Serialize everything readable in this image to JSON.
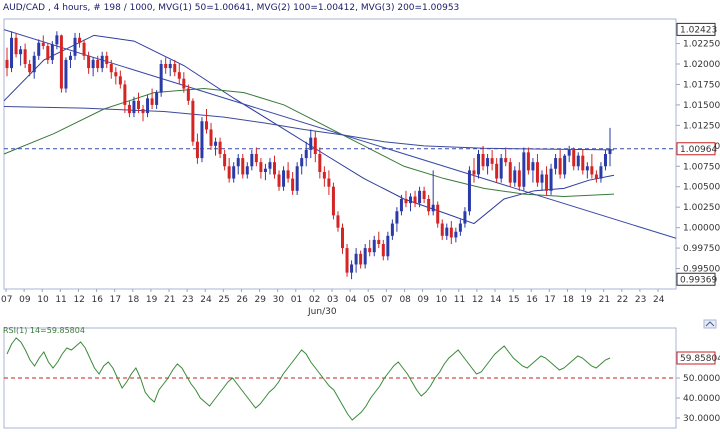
{
  "header": {
    "title": "AUD/CAD , 4 hours, # 198 / 1000, MVG(1) 50=1.00641, MVG(2) 100=1.00412, MVG(3) 200=1.00953"
  },
  "rsi_header": {
    "title": "RSI(1) 14=59.85804"
  },
  "colors": {
    "background": "#ffffff",
    "panel_frame": "#aab6d4",
    "candle_up": "#2a3aa8",
    "candle_down": "#d42424",
    "mvg50": "#2c3a9e",
    "mvg100": "#3a7a3a",
    "mvg200": "#3a4a9e",
    "trendline": "#3a4aa8",
    "dashed_level": "#3a4aa8",
    "rsi_line": "#3a8a3a",
    "rsi_level": "#c82020"
  },
  "chart_data": [
    {
      "type": "candlestick",
      "panel": "price",
      "x_ticks": [
        "07",
        "09",
        "10",
        "11",
        "12",
        "16",
        "17",
        "18",
        "19",
        "21",
        "23",
        "24",
        "25",
        "26",
        "29",
        "30",
        "01",
        "02",
        "03",
        "04",
        "05",
        "07",
        "08",
        "09",
        "10",
        "11",
        "12",
        "14",
        "15",
        "16",
        "17",
        "18",
        "19",
        "21",
        "22",
        "23",
        "24"
      ],
      "x_sublabel": "Jun/30",
      "y_ticks": [
        "1.02250",
        "1.02000",
        "1.01750",
        "1.01500",
        "1.01250",
        "1.01000",
        "1.00750",
        "1.00500",
        "1.00250",
        "1.00000",
        "0.99750",
        "0.99500"
      ],
      "y_range": [
        0.9925,
        1.0255
      ],
      "price_labels": {
        "high": {
          "text": "1.02423",
          "value": 1.02423
        },
        "current": {
          "text": "1.00964",
          "value": 1.00964
        },
        "low": {
          "text": "0.99369",
          "value": 0.99369
        }
      },
      "dashed_level": 1.00964,
      "trendline": {
        "from": [
          0,
          1.0242
        ],
        "to": [
          720,
          0.9987
        ]
      },
      "series": [
        {
          "name": "MVG(1) 50",
          "values": [
            [
              0,
              1.0155
            ],
            [
              40,
              1.0205
            ],
            [
              90,
              1.0235
            ],
            [
              130,
              1.0228
            ],
            [
              180,
              1.0198
            ],
            [
              230,
              1.0158
            ],
            [
              270,
              1.0128
            ],
            [
              320,
              1.009
            ],
            [
              360,
              1.006
            ],
            [
              400,
              1.0035
            ],
            [
              440,
              1.0018
            ],
            [
              470,
              1.0005
            ],
            [
              500,
              1.0035
            ],
            [
              530,
              1.0045
            ],
            [
              560,
              1.0048
            ],
            [
              585,
              1.0058
            ],
            [
              610,
              1.0064
            ]
          ]
        },
        {
          "name": "MVG(2) 100",
          "values": [
            [
              0,
              1.009
            ],
            [
              50,
              1.0115
            ],
            [
              100,
              1.0145
            ],
            [
              150,
              1.0165
            ],
            [
              200,
              1.017
            ],
            [
              240,
              1.0165
            ],
            [
              280,
              1.015
            ],
            [
              320,
              1.0125
            ],
            [
              360,
              1.01
            ],
            [
              400,
              1.0075
            ],
            [
              440,
              1.006
            ],
            [
              480,
              1.0048
            ],
            [
              520,
              1.0041
            ],
            [
              560,
              1.0038
            ],
            [
              610,
              1.0041
            ]
          ]
        },
        {
          "name": "MVG(3) 200",
          "values": [
            [
              0,
              1.0148
            ],
            [
              80,
              1.0146
            ],
            [
              160,
              1.0142
            ],
            [
              220,
              1.0135
            ],
            [
              260,
              1.0128
            ],
            [
              300,
              1.012
            ],
            [
              340,
              1.0113
            ],
            [
              380,
              1.0105
            ],
            [
              420,
              1.01
            ],
            [
              480,
              1.0097
            ],
            [
              540,
              1.0096
            ],
            [
              610,
              1.0095
            ]
          ]
        }
      ],
      "candles": [
        [
          1.0205,
          1.022,
          1.0185,
          1.0195
        ],
        [
          1.0195,
          1.024,
          1.019,
          1.0232
        ],
        [
          1.0232,
          1.0238,
          1.0208,
          1.0212
        ],
        [
          1.0212,
          1.0222,
          1.0198,
          1.0218
        ],
        [
          1.0218,
          1.0225,
          1.0195,
          1.02
        ],
        [
          1.02,
          1.0205,
          1.0185,
          1.019
        ],
        [
          1.019,
          1.0215,
          1.0182,
          1.021
        ],
        [
          1.021,
          1.023,
          1.0205,
          1.0226
        ],
        [
          1.0226,
          1.0235,
          1.0218,
          1.0222
        ],
        [
          1.0222,
          1.0225,
          1.02,
          1.0205
        ],
        [
          1.0205,
          1.0228,
          1.02,
          1.0224
        ],
        [
          1.0224,
          1.024,
          1.0218,
          1.0235
        ],
        [
          1.0235,
          1.0236,
          1.0165,
          1.017
        ],
        [
          1.017,
          1.0208,
          1.0165,
          1.0205
        ],
        [
          1.0205,
          1.0215,
          1.0195,
          1.021
        ],
        [
          1.021,
          1.0238,
          1.0205,
          1.0232
        ],
        [
          1.0232,
          1.0238,
          1.022,
          1.0226
        ],
        [
          1.0226,
          1.023,
          1.0205,
          1.021
        ],
        [
          1.021,
          1.0215,
          1.0188,
          1.0195
        ],
        [
          1.0195,
          1.0208,
          1.0185,
          1.0205
        ],
        [
          1.0205,
          1.021,
          1.019,
          1.0195
        ],
        [
          1.0195,
          1.0215,
          1.019,
          1.021
        ],
        [
          1.021,
          1.0215,
          1.0195,
          1.02
        ],
        [
          1.02,
          1.0205,
          1.0182,
          1.019
        ],
        [
          1.019,
          1.0196,
          1.0175,
          1.0185
        ],
        [
          1.0185,
          1.0192,
          1.017,
          1.0175
        ],
        [
          1.0175,
          1.018,
          1.014,
          1.015
        ],
        [
          1.015,
          1.0155,
          1.0135,
          1.014
        ],
        [
          1.014,
          1.016,
          1.0135,
          1.0155
        ],
        [
          1.0155,
          1.0165,
          1.014,
          1.0145
        ],
        [
          1.0145,
          1.015,
          1.013,
          1.014
        ],
        [
          1.014,
          1.0162,
          1.0135,
          1.0158
        ],
        [
          1.0158,
          1.017,
          1.0145,
          1.015
        ],
        [
          1.015,
          1.0168,
          1.0145,
          1.0165
        ],
        [
          1.0165,
          1.0205,
          1.016,
          1.02
        ],
        [
          1.02,
          1.0208,
          1.0188,
          1.0195
        ],
        [
          1.0195,
          1.0205,
          1.0185,
          1.02
        ],
        [
          1.02,
          1.0205,
          1.0185,
          1.019
        ],
        [
          1.019,
          1.02,
          1.0175,
          1.0182
        ],
        [
          1.0182,
          1.019,
          1.0165,
          1.017
        ],
        [
          1.017,
          1.0175,
          1.015,
          1.0155
        ],
        [
          1.0155,
          1.0158,
          1.01,
          1.0105
        ],
        [
          1.0105,
          1.0115,
          1.0078,
          1.0085
        ],
        [
          1.0085,
          1.0135,
          1.008,
          1.013
        ],
        [
          1.013,
          1.0145,
          1.0115,
          1.012
        ],
        [
          1.012,
          1.0128,
          1.0095,
          1.01
        ],
        [
          1.01,
          1.011,
          1.0088,
          1.0105
        ],
        [
          1.0105,
          1.011,
          1.0085,
          1.009
        ],
        [
          1.009,
          1.0095,
          1.007,
          1.0075
        ],
        [
          1.0075,
          1.0085,
          1.0055,
          1.006
        ],
        [
          1.006,
          1.008,
          1.0055,
          1.0075
        ],
        [
          1.0075,
          1.009,
          1.0065,
          1.0085
        ],
        [
          1.0085,
          1.009,
          1.006,
          1.0065
        ],
        [
          1.0065,
          1.008,
          1.006,
          1.0075
        ],
        [
          1.0075,
          1.0095,
          1.007,
          1.009
        ],
        [
          1.009,
          1.0098,
          1.0075,
          1.008
        ],
        [
          1.008,
          1.0085,
          1.006,
          1.0068
        ],
        [
          1.0068,
          1.0078,
          1.0058,
          1.0072
        ],
        [
          1.0072,
          1.0085,
          1.0065,
          1.008
        ],
        [
          1.008,
          1.0088,
          1.006,
          1.0065
        ],
        [
          1.0065,
          1.007,
          1.0045,
          1.005
        ],
        [
          1.005,
          1.0075,
          1.0045,
          1.007
        ],
        [
          1.007,
          1.008,
          1.0055,
          1.006
        ],
        [
          1.006,
          1.0068,
          1.004,
          1.0045
        ],
        [
          1.0045,
          1.008,
          1.004,
          1.0075
        ],
        [
          1.0075,
          1.009,
          1.0065,
          1.0085
        ],
        [
          1.0085,
          1.0105,
          1.0075,
          1.0095
        ],
        [
          1.0095,
          1.012,
          1.0085,
          1.011
        ],
        [
          1.011,
          1.0118,
          1.008,
          1.009
        ],
        [
          1.009,
          1.0098,
          1.006,
          1.0068
        ],
        [
          1.0068,
          1.0075,
          1.005,
          1.006
        ],
        [
          1.006,
          1.007,
          1.004,
          1.005
        ],
        [
          1.005,
          1.0055,
          1.001,
          1.0015
        ],
        [
          1.0015,
          1.002,
          0.9995,
          1.0
        ],
        [
          1.0,
          1.0005,
          0.9968,
          0.9975
        ],
        [
          0.9975,
          0.998,
          0.994,
          0.9945
        ],
        [
          0.9945,
          0.996,
          0.9937,
          0.9955
        ],
        [
          0.9955,
          0.9975,
          0.9945,
          0.9968
        ],
        [
          0.9968,
          0.9972,
          0.995,
          0.9955
        ],
        [
          0.9955,
          0.998,
          0.995,
          0.9975
        ],
        [
          0.9975,
          0.9985,
          0.9965,
          0.997
        ],
        [
          0.997,
          0.999,
          0.9965,
          0.9985
        ],
        [
          0.9985,
          0.9995,
          0.9975,
          0.998
        ],
        [
          0.998,
          0.9985,
          0.996,
          0.9965
        ],
        [
          0.9965,
          0.9995,
          0.996,
          0.999
        ],
        [
          0.999,
          1.001,
          0.9985,
          1.0005
        ],
        [
          1.0005,
          1.0025,
          0.9995,
          1.002
        ],
        [
          1.002,
          1.004,
          1.0015,
          1.0035
        ],
        [
          1.0035,
          1.0045,
          1.0025,
          1.003
        ],
        [
          1.003,
          1.0042,
          1.002,
          1.0038
        ],
        [
          1.0038,
          1.0045,
          1.0025,
          1.003
        ],
        [
          1.003,
          1.005,
          1.0025,
          1.0045
        ],
        [
          1.0045,
          1.005,
          1.003,
          1.0035
        ],
        [
          1.0035,
          1.004,
          1.0015,
          1.002
        ],
        [
          1.002,
          1.007,
          1.0015,
          1.0028
        ],
        [
          1.0028,
          1.0032,
          1.0,
          1.0005
        ],
        [
          1.0005,
          1.001,
          0.9985,
          0.999
        ],
        [
          0.999,
          1.0005,
          0.9985,
          1.0
        ],
        [
          1.0,
          1.0008,
          0.998,
          0.9988
        ],
        [
          0.9988,
          1.0,
          0.9982,
          0.9995
        ],
        [
          0.9995,
          1.001,
          0.999,
          1.0005
        ],
        [
          1.0005,
          1.0025,
          1.0,
          1.002
        ],
        [
          1.002,
          1.0075,
          1.0015,
          1.007
        ],
        [
          1.007,
          1.0085,
          1.0055,
          1.0065
        ],
        [
          1.0065,
          1.0095,
          1.006,
          1.009
        ],
        [
          1.009,
          1.01,
          1.007,
          1.0075
        ],
        [
          1.0075,
          1.009,
          1.0065,
          1.0085
        ],
        [
          1.0085,
          1.0095,
          1.007,
          1.0078
        ],
        [
          1.0078,
          1.0085,
          1.0055,
          1.006
        ],
        [
          1.006,
          1.009,
          1.0055,
          1.0085
        ],
        [
          1.0085,
          1.0098,
          1.0075,
          1.008
        ],
        [
          1.008,
          1.0085,
          1.005,
          1.0055
        ],
        [
          1.0055,
          1.0075,
          1.005,
          1.007
        ],
        [
          1.007,
          1.008,
          1.0045,
          1.005
        ],
        [
          1.005,
          1.0098,
          1.0045,
          1.0092
        ],
        [
          1.0092,
          1.0098,
          1.0065,
          1.007
        ],
        [
          1.007,
          1.0085,
          1.0055,
          1.008
        ],
        [
          1.008,
          1.009,
          1.005,
          1.0055
        ],
        [
          1.0055,
          1.007,
          1.0045,
          1.0065
        ],
        [
          1.0065,
          1.0075,
          1.004,
          1.0045
        ],
        [
          1.0045,
          1.0078,
          1.004,
          1.0072
        ],
        [
          1.0072,
          1.009,
          1.0065,
          1.0085
        ],
        [
          1.0085,
          1.0095,
          1.006,
          1.0065
        ],
        [
          1.0065,
          1.009,
          1.006,
          1.0088
        ],
        [
          1.0088,
          1.01,
          1.008,
          1.0095
        ],
        [
          1.0095,
          1.0098,
          1.007,
          1.0075
        ],
        [
          1.0075,
          1.0092,
          1.007,
          1.0088
        ],
        [
          1.0088,
          1.0095,
          1.0065,
          1.007
        ],
        [
          1.007,
          1.008,
          1.006,
          1.0075
        ],
        [
          1.0075,
          1.009,
          1.006,
          1.0065
        ],
        [
          1.0065,
          1.007,
          1.0055,
          1.006
        ],
        [
          1.006,
          1.008,
          1.0055,
          1.0075
        ],
        [
          1.0075,
          1.0095,
          1.007,
          1.009
        ],
        [
          1.009,
          1.0122,
          1.0075,
          1.0096
        ]
      ]
    },
    {
      "type": "line",
      "panel": "rsi",
      "y_ticks": [
        "50.00000",
        "40.00000",
        "30.00000"
      ],
      "y_range": [
        25,
        75
      ],
      "current_label": "59.85804",
      "level": 50,
      "values": [
        62,
        67,
        70,
        68,
        64,
        59,
        56,
        60,
        63,
        58,
        55,
        58,
        62,
        65,
        64,
        66,
        68,
        65,
        60,
        55,
        52,
        56,
        58,
        55,
        50,
        45,
        48,
        52,
        55,
        50,
        43,
        40,
        38,
        44,
        47,
        50,
        54,
        57,
        55,
        51,
        47,
        44,
        40,
        38,
        36,
        39,
        42,
        45,
        48,
        50,
        47,
        44,
        41,
        38,
        35,
        37,
        40,
        43,
        45,
        48,
        52,
        55,
        58,
        61,
        64,
        62,
        58,
        55,
        52,
        49,
        46,
        44,
        40,
        36,
        32,
        29,
        31,
        33,
        36,
        40,
        43,
        46,
        50,
        53,
        56,
        58,
        55,
        52,
        48,
        44,
        41,
        43,
        46,
        50,
        53,
        57,
        60,
        62,
        64,
        61,
        58,
        55,
        52,
        53,
        56,
        59,
        62,
        64,
        66,
        63,
        60,
        58,
        56,
        55,
        57,
        59,
        61,
        60,
        58,
        56,
        54,
        55,
        57,
        59,
        61,
        60,
        58,
        56,
        55,
        57,
        59,
        60
      ]
    }
  ]
}
